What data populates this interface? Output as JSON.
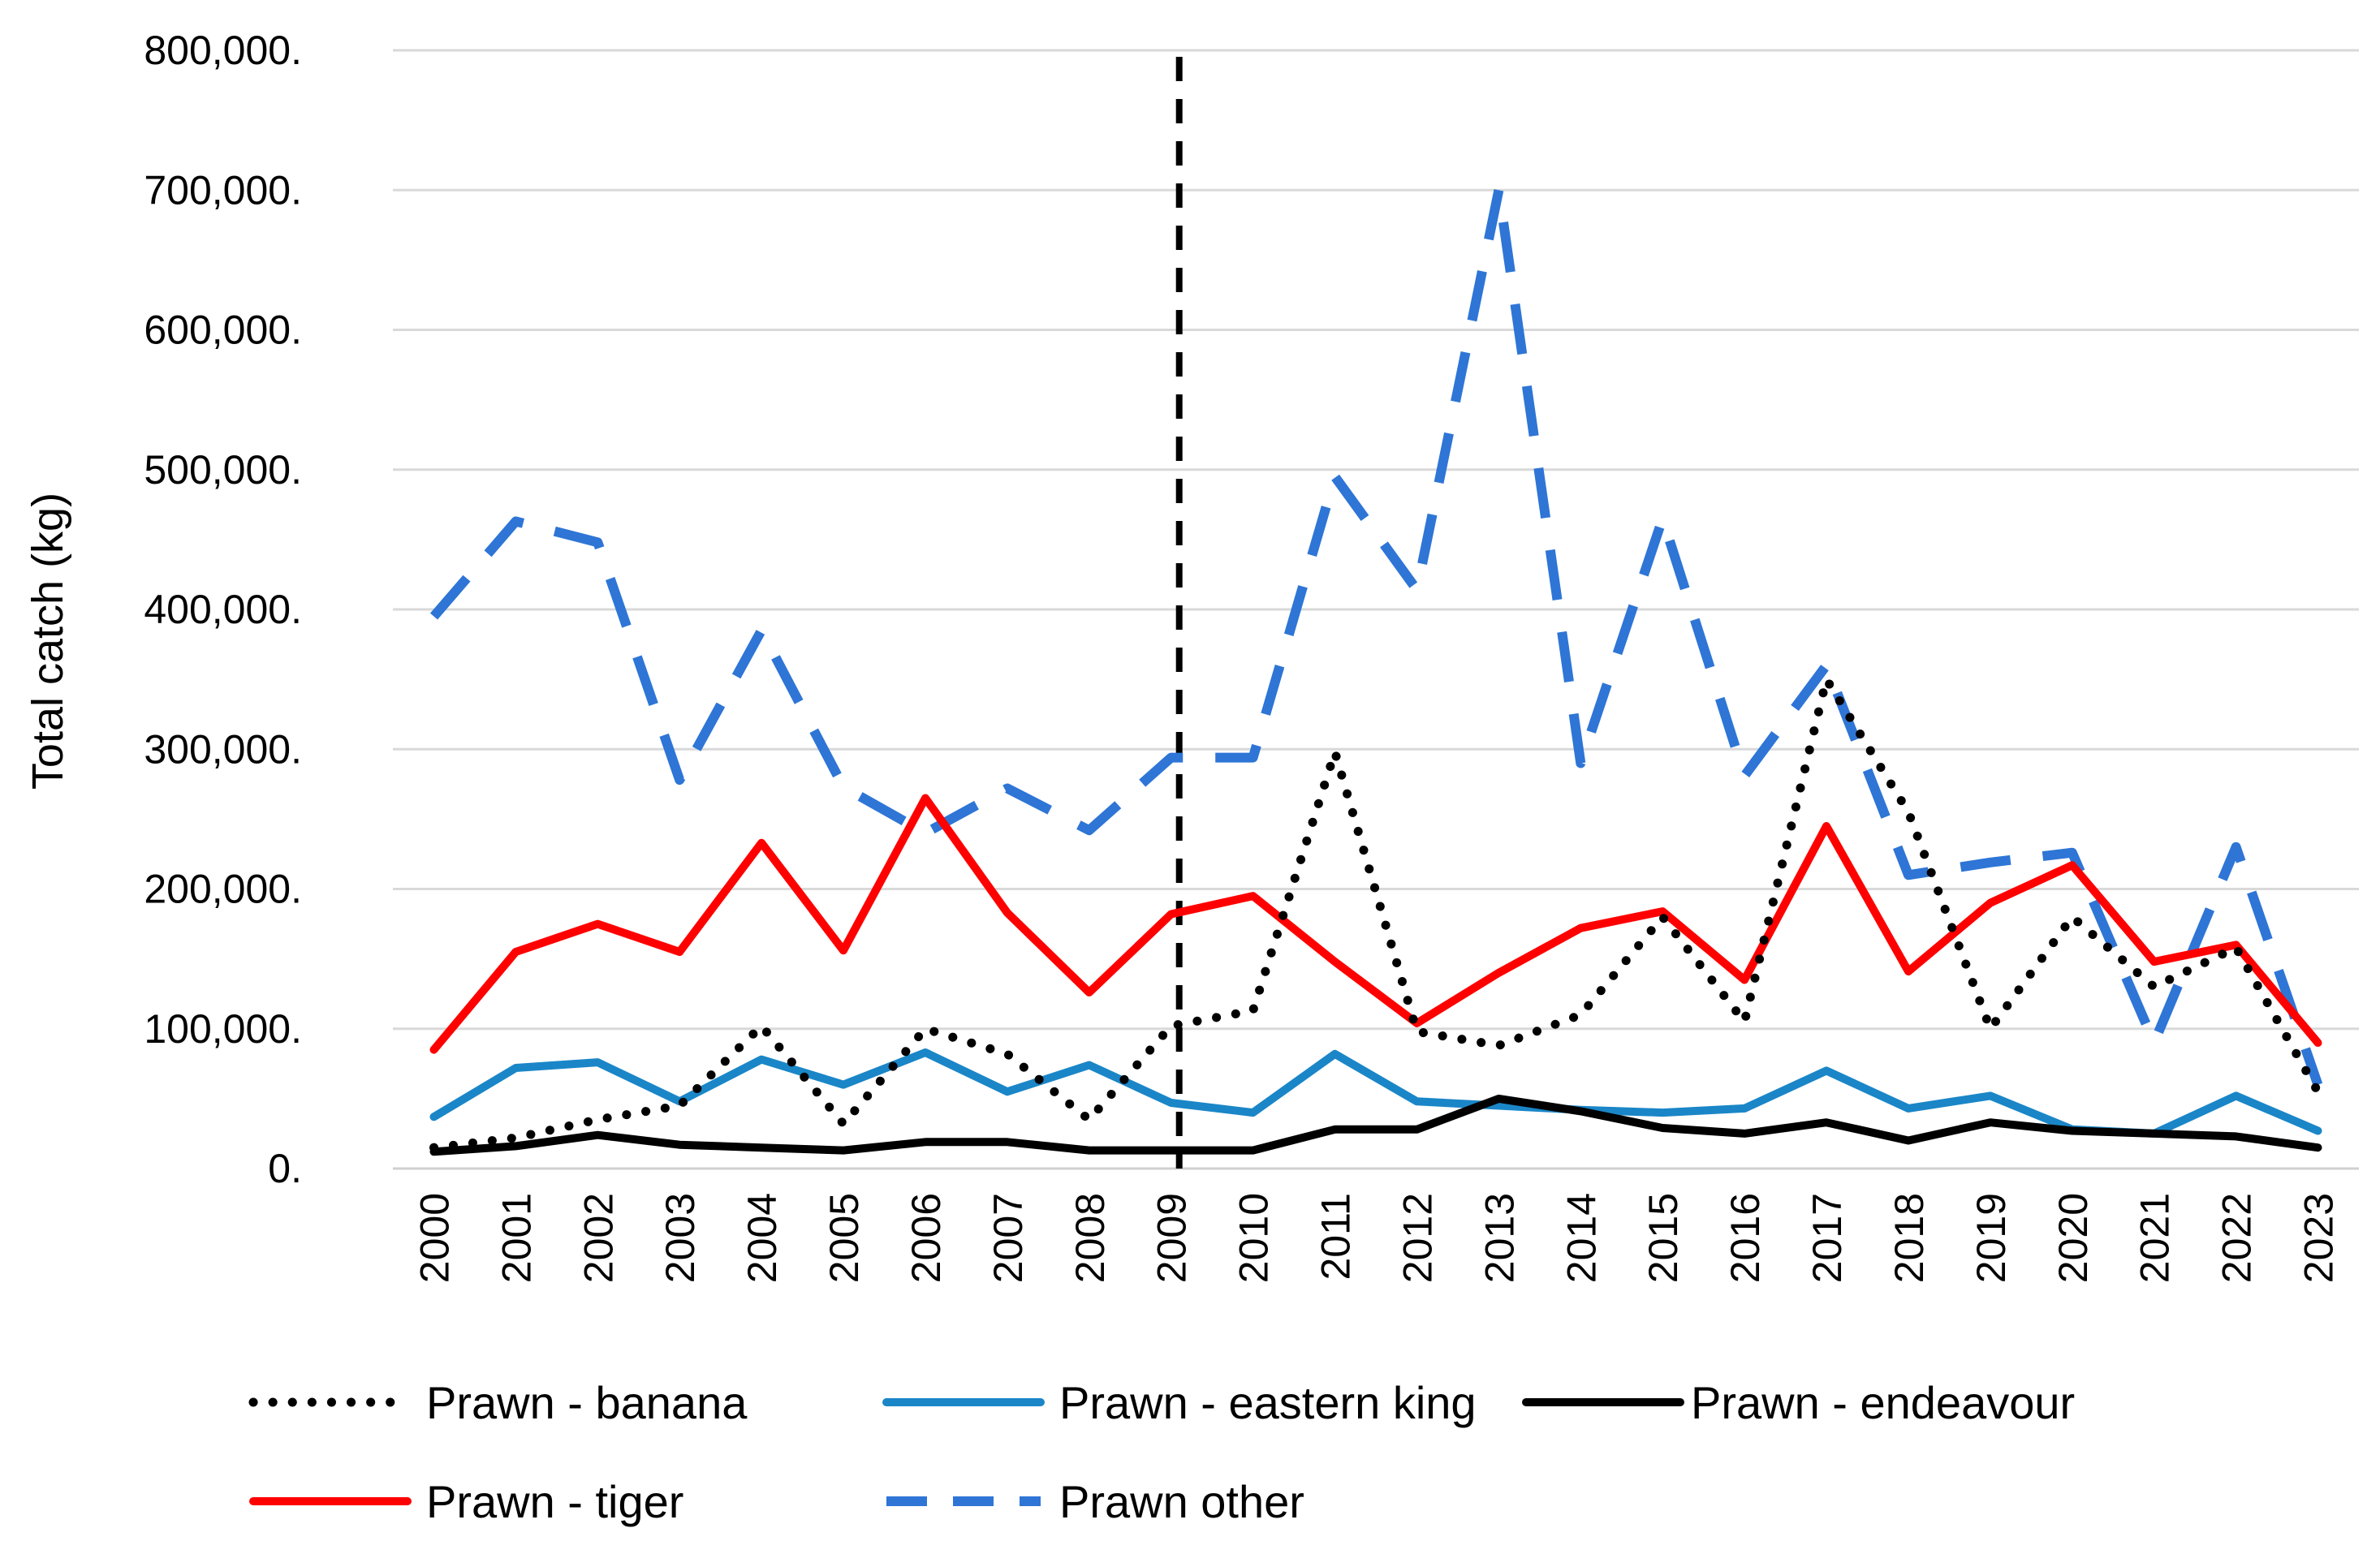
{
  "chart_data": {
    "type": "line",
    "title": "",
    "xlabel": "",
    "ylabel": "Total catch (kg)",
    "ylim": [
      0,
      800000
    ],
    "y_ticks": [
      {
        "value": 0,
        "label": "0."
      },
      {
        "value": 100000,
        "label": "100,000."
      },
      {
        "value": 200000,
        "label": "200,000."
      },
      {
        "value": 300000,
        "label": "300,000."
      },
      {
        "value": 400000,
        "label": "400,000."
      },
      {
        "value": 500000,
        "label": "500,000."
      },
      {
        "value": 600000,
        "label": "600,000."
      },
      {
        "value": 700000,
        "label": "700,000."
      },
      {
        "value": 800000,
        "label": "800,000."
      }
    ],
    "grid": true,
    "legend_position": "bottom",
    "categories": [
      "2000",
      "2001",
      "2002",
      "2003",
      "2004",
      "2005",
      "2006",
      "2007",
      "2008",
      "2009",
      "2010",
      "2011",
      "2012",
      "2013",
      "2014",
      "2015",
      "2016",
      "2017",
      "2018",
      "2019",
      "2020",
      "2021",
      "2022",
      "2023"
    ],
    "reference_line": {
      "after_category": "2009",
      "style": "dashed",
      "color": "#000000"
    },
    "series": [
      {
        "name": "Prawn - banana",
        "color": "#000000",
        "style": "dotted",
        "values": [
          15000,
          22000,
          35000,
          45000,
          102000,
          32000,
          100000,
          82000,
          35000,
          102000,
          113000,
          298000,
          98000,
          88000,
          110000,
          180000,
          105000,
          350000,
          255000,
          100000,
          180000,
          130000,
          158000,
          55000
        ]
      },
      {
        "name": "Prawn - eastern king",
        "color": "#1a86c7",
        "style": "solid",
        "values": [
          37000,
          72000,
          76000,
          48000,
          78000,
          60000,
          83000,
          55000,
          74000,
          47000,
          40000,
          82000,
          48000,
          45000,
          42000,
          40000,
          43000,
          70000,
          43000,
          52000,
          28000,
          25000,
          52000,
          27000
        ]
      },
      {
        "name": "Prawn - endeavour",
        "color": "#000000",
        "style": "solid",
        "values": [
          12000,
          16000,
          24000,
          17000,
          15000,
          13000,
          19000,
          19000,
          13000,
          13000,
          13000,
          28000,
          28000,
          50000,
          41000,
          29000,
          25000,
          33000,
          20000,
          33000,
          27000,
          25000,
          23000,
          15000
        ]
      },
      {
        "name": "Prawn - tiger",
        "color": "#ff0000",
        "style": "solid",
        "values": [
          85000,
          155000,
          175000,
          155000,
          233000,
          156000,
          265000,
          183000,
          126000,
          182000,
          195000,
          148000,
          104000,
          140000,
          172000,
          184000,
          135000,
          245000,
          141000,
          190000,
          217000,
          148000,
          160000,
          90000
        ]
      },
      {
        "name": "Prawn other",
        "color": "#2e75d6",
        "style": "dashed",
        "values": [
          395000,
          463000,
          448000,
          278000,
          385000,
          273000,
          240000,
          272000,
          242000,
          294000,
          294000,
          495000,
          414000,
          700000,
          290000,
          465000,
          281000,
          360000,
          210000,
          219000,
          226000,
          90000,
          230000,
          60000
        ]
      }
    ]
  }
}
